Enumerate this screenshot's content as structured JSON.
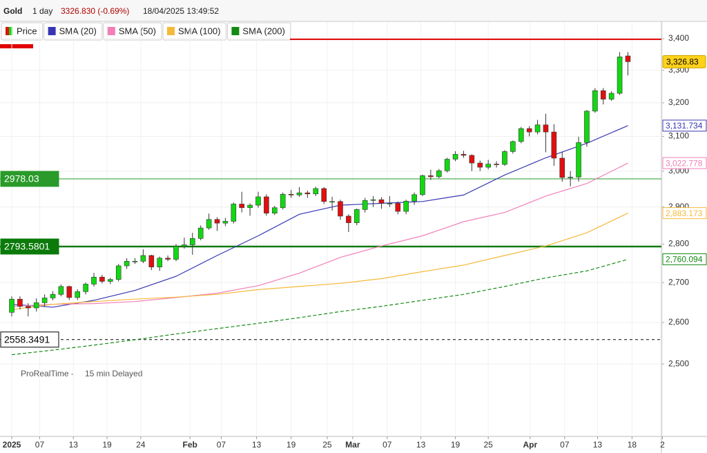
{
  "header": {
    "instrument": "Gold",
    "interval": "1 day",
    "change": "3326.830 (-0.69%)",
    "timestamp": "18/04/2025 13:49:52"
  },
  "footer": {
    "source": "ProRealTime -",
    "delay": "15 min Delayed"
  },
  "chart_data": {
    "type": "candlestick",
    "log_scale": true,
    "grid": true,
    "ylim": [
      2337.6,
      3453.7
    ],
    "yticks": [
      {
        "value": 2500,
        "label": "2,500"
      },
      {
        "value": 2600,
        "label": "2,600"
      },
      {
        "value": 2700,
        "label": "2,700"
      },
      {
        "value": 2800,
        "label": "2,800"
      },
      {
        "value": 2900,
        "label": "2,900"
      },
      {
        "value": 3000,
        "label": "3,000"
      },
      {
        "value": 3100,
        "label": "3,100"
      },
      {
        "value": 3200,
        "label": "3,200"
      },
      {
        "value": 3300,
        "label": "3,300"
      },
      {
        "value": 3400,
        "label": "3,400"
      }
    ],
    "xlim": [
      -1.43,
      79.08
    ],
    "xticks": [
      {
        "value": 0,
        "label": "2025"
      },
      {
        "value": 3.4,
        "label": "07"
      },
      {
        "value": 7.5,
        "label": "13"
      },
      {
        "value": 11.6,
        "label": "19"
      },
      {
        "value": 15.7,
        "label": "24"
      },
      {
        "value": 21.7,
        "label": "Feb"
      },
      {
        "value": 25.5,
        "label": "07"
      },
      {
        "value": 29.8,
        "label": "13"
      },
      {
        "value": 34,
        "label": "19"
      },
      {
        "value": 38.4,
        "label": "25"
      },
      {
        "value": 41.5,
        "label": "Mar"
      },
      {
        "value": 45.7,
        "label": "07"
      },
      {
        "value": 49.8,
        "label": "13"
      },
      {
        "value": 54,
        "label": "19"
      },
      {
        "value": 58,
        "label": "25"
      },
      {
        "value": 63.1,
        "label": "Apr"
      },
      {
        "value": 67.3,
        "label": "07"
      },
      {
        "value": 71.3,
        "label": "13"
      },
      {
        "value": 75.5,
        "label": "18"
      },
      {
        "value": 79.2,
        "label": "2"
      }
    ],
    "candles": {
      "name": "Price",
      "up_color": "#12d812",
      "down_color": "#e01010",
      "open": [
        2625,
        2658,
        2640,
        2636,
        2649,
        2661,
        2670,
        2690,
        2662,
        2677,
        2696,
        2714,
        2703,
        2708,
        2743,
        2755,
        2755,
        2770,
        2740,
        2763,
        2760,
        2794,
        2798,
        2815,
        2843,
        2866,
        2856,
        2861,
        2908,
        2898,
        2905,
        2928,
        2883,
        2898,
        2935,
        2933,
        2939,
        2936,
        2951,
        2915,
        2915,
        2875,
        2857,
        2893,
        2918,
        2920,
        2910,
        2910,
        2888,
        2916,
        2934,
        2987,
        2984,
        3001,
        3034,
        3048,
        3045,
        3023,
        3011,
        3020,
        3019,
        3056,
        3085,
        3123,
        3113,
        3134,
        3113,
        3037,
        2982,
        2983,
        3082,
        3175,
        3237,
        3211,
        3229,
        3345
      ],
      "high": [
        2665,
        2665,
        2648,
        2660,
        2670,
        2678,
        2695,
        2692,
        2683,
        2700,
        2725,
        2720,
        2712,
        2748,
        2763,
        2763,
        2786,
        2772,
        2767,
        2770,
        2800,
        2817,
        2830,
        2850,
        2882,
        2872,
        2870,
        2912,
        2942,
        2910,
        2942,
        2935,
        2903,
        2940,
        2947,
        2955,
        2945,
        2956,
        2955,
        2928,
        2920,
        2880,
        2896,
        2925,
        2930,
        2927,
        2930,
        2915,
        2920,
        2940,
        2990,
        3004,
        3006,
        3038,
        3057,
        3058,
        3048,
        3030,
        3032,
        3028,
        3060,
        3088,
        3128,
        3130,
        3149,
        3167,
        3136,
        3055,
        3000,
        3099,
        3178,
        3245,
        3245,
        3235,
        3357,
        3357
      ],
      "low": [
        2615,
        2632,
        2615,
        2627,
        2640,
        2655,
        2665,
        2656,
        2656,
        2670,
        2690,
        2698,
        2696,
        2703,
        2735,
        2748,
        2750,
        2732,
        2730,
        2755,
        2755,
        2788,
        2772,
        2810,
        2838,
        2835,
        2848,
        2855,
        2885,
        2876,
        2898,
        2876,
        2878,
        2893,
        2925,
        2928,
        2925,
        2930,
        2908,
        2890,
        2865,
        2832,
        2850,
        2885,
        2900,
        2895,
        2900,
        2880,
        2880,
        2906,
        2930,
        2975,
        2980,
        2996,
        3028,
        3038,
        3000,
        3000,
        3005,
        3010,
        3015,
        3050,
        3080,
        3100,
        3106,
        3054,
        3015,
        2970,
        2957,
        2970,
        3070,
        3170,
        3195,
        3206,
        3224,
        3284
      ],
      "close": [
        2658,
        2640,
        2636,
        2649,
        2661,
        2670,
        2690,
        2662,
        2677,
        2696,
        2714,
        2703,
        2708,
        2743,
        2755,
        2755,
        2770,
        2740,
        2763,
        2760,
        2794,
        2798,
        2815,
        2843,
        2866,
        2856,
        2861,
        2908,
        2898,
        2905,
        2928,
        2883,
        2898,
        2935,
        2933,
        2939,
        2936,
        2951,
        2915,
        2915,
        2875,
        2857,
        2893,
        2918,
        2920,
        2910,
        2910,
        2888,
        2916,
        2934,
        2987,
        2984,
        3001,
        3034,
        3048,
        3045,
        3023,
        3011,
        3020,
        3019,
        3056,
        3085,
        3123,
        3113,
        3134,
        3113,
        3037,
        2982,
        2983,
        3082,
        3175,
        3237,
        3211,
        3229,
        3342,
        3326.83
      ]
    },
    "price_tag": {
      "value": 3326.83,
      "label": "3,326.83"
    },
    "series": [
      {
        "name": "SMA (20)",
        "color": "#3636b4",
        "x": [
          0,
          5,
          10,
          15,
          20,
          25,
          30,
          35,
          40,
          45,
          50,
          55,
          60,
          65,
          70,
          75
        ],
        "values": [
          2645,
          2638,
          2655,
          2680,
          2716,
          2770,
          2822,
          2880,
          2905,
          2910,
          2915,
          2933,
          2989,
          3038,
          3080,
          3131.734
        ],
        "last_label": "3,131.734"
      },
      {
        "name": "SMA (50)",
        "color": "#f27fb8",
        "x": [
          0,
          5,
          10,
          15,
          20,
          25,
          30,
          35,
          40,
          45,
          50,
          55,
          60,
          65,
          70,
          75
        ],
        "values": [
          2640,
          2645,
          2647,
          2652,
          2662,
          2673,
          2692,
          2724,
          2765,
          2795,
          2822,
          2860,
          2885,
          2930,
          2965,
          3022.778
        ],
        "last_label": "3,022.778"
      },
      {
        "name": "SMA (100)",
        "color": "#f5b93a",
        "x": [
          0,
          5,
          10,
          15,
          20,
          25,
          30,
          35,
          40,
          45,
          50,
          55,
          60,
          65,
          70,
          75
        ],
        "values": [
          2632,
          2645,
          2652,
          2658,
          2663,
          2670,
          2682,
          2690,
          2698,
          2710,
          2728,
          2745,
          2770,
          2795,
          2830,
          2883.173
        ],
        "last_label": "2,883.173"
      },
      {
        "name": "SMA (200)",
        "color": "#138a13",
        "dash": true,
        "x": [
          0,
          5,
          10,
          15,
          20,
          25,
          30,
          35,
          40,
          45,
          50,
          55,
          60,
          65,
          70,
          75
        ],
        "values": [
          2522,
          2533,
          2545,
          2558,
          2572,
          2585,
          2598,
          2612,
          2627,
          2640,
          2655,
          2670,
          2690,
          2712,
          2730,
          2760.094
        ],
        "last_label": "2,760.094"
      }
    ],
    "levels": [
      2978.03,
      2793.5801,
      2558.3491
    ],
    "level_colors": [
      "#2a9a2a",
      "#0b7a0b",
      "#000000"
    ],
    "level_styles": [
      "solid",
      "thick",
      "dashed"
    ],
    "red_line": 3398,
    "red_line_color": "#e00000"
  }
}
